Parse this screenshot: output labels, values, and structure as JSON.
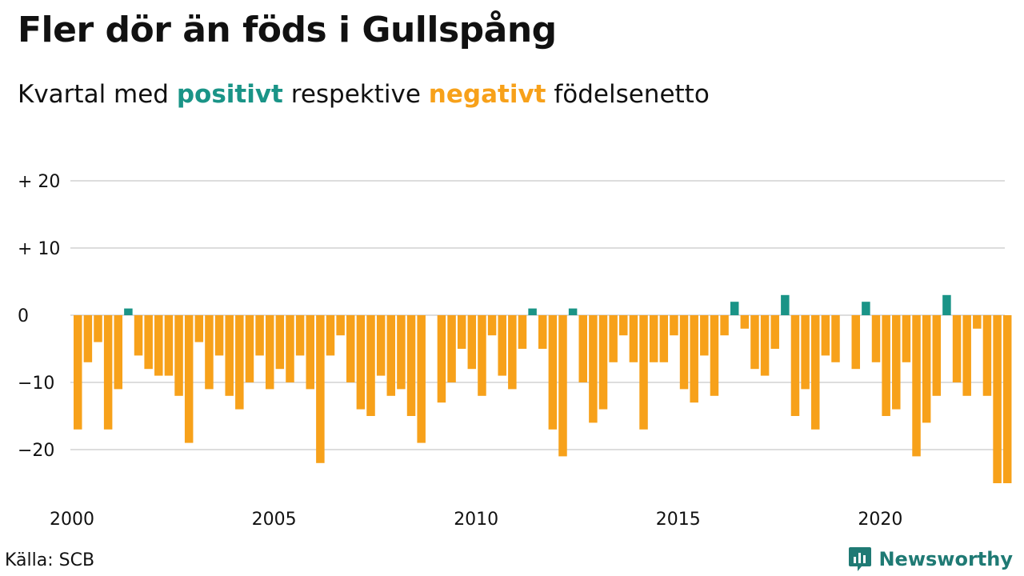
{
  "title": "Fler dör än föds i Gullspång",
  "subtitle": {
    "prefix": "Kvartal med",
    "positive": "positivt",
    "middle": "respektive",
    "negative": "negativt",
    "suffix": "födelsenetto"
  },
  "source": "Källa: SCB",
  "brand": {
    "name": "Newsworthy",
    "icon": "newsworthy-logo-icon"
  },
  "colors": {
    "positive": "#1a9487",
    "negative": "#f7a11a",
    "grid": "#dddddd",
    "text": "#111111"
  },
  "chart_data": {
    "type": "bar",
    "xlabel": "",
    "ylabel": "",
    "ylim": [
      -27,
      22
    ],
    "y_ticks": [
      {
        "value": 20,
        "label": "+ 20"
      },
      {
        "value": 10,
        "label": "+ 10"
      },
      {
        "value": 0,
        "label": "0"
      },
      {
        "value": -10,
        "label": "−10"
      },
      {
        "value": -20,
        "label": "−20"
      }
    ],
    "x_ticks": [
      "2000",
      "2005",
      "2010",
      "2015",
      "2020"
    ],
    "first_year": 2000,
    "grid": true,
    "categories": [
      "2000 Q1",
      "2000 Q2",
      "2000 Q3",
      "2000 Q4",
      "2001 Q1",
      "2001 Q2",
      "2001 Q3",
      "2001 Q4",
      "2002 Q1",
      "2002 Q2",
      "2002 Q3",
      "2002 Q4",
      "2003 Q1",
      "2003 Q2",
      "2003 Q3",
      "2003 Q4",
      "2004 Q1",
      "2004 Q2",
      "2004 Q3",
      "2004 Q4",
      "2005 Q1",
      "2005 Q2",
      "2005 Q3",
      "2005 Q4",
      "2006 Q1",
      "2006 Q2",
      "2006 Q3",
      "2006 Q4",
      "2007 Q1",
      "2007 Q2",
      "2007 Q3",
      "2007 Q4",
      "2008 Q1",
      "2008 Q2",
      "2008 Q3",
      "2008 Q4",
      "2009 Q1",
      "2009 Q2",
      "2009 Q3",
      "2009 Q4",
      "2010 Q1",
      "2010 Q2",
      "2010 Q3",
      "2010 Q4",
      "2011 Q1",
      "2011 Q2",
      "2011 Q3",
      "2011 Q4",
      "2012 Q1",
      "2012 Q2",
      "2012 Q3",
      "2012 Q4",
      "2013 Q1",
      "2013 Q2",
      "2013 Q3",
      "2013 Q4",
      "2014 Q1",
      "2014 Q2",
      "2014 Q3",
      "2014 Q4",
      "2015 Q1",
      "2015 Q2",
      "2015 Q3",
      "2015 Q4",
      "2016 Q1",
      "2016 Q2",
      "2016 Q3",
      "2016 Q4",
      "2017 Q1",
      "2017 Q2",
      "2017 Q3",
      "2017 Q4",
      "2018 Q1",
      "2018 Q2",
      "2018 Q3",
      "2018 Q4",
      "2019 Q1",
      "2019 Q2",
      "2019 Q3",
      "2019 Q4",
      "2020 Q1",
      "2020 Q2",
      "2020 Q3",
      "2020 Q4",
      "2021 Q1",
      "2021 Q2",
      "2021 Q3",
      "2021 Q4",
      "2022 Q1",
      "2022 Q2",
      "2022 Q3",
      "2022 Q4",
      "2023 Q1"
    ],
    "values": [
      -17,
      -7,
      -4,
      -17,
      -11,
      1,
      -6,
      -8,
      -9,
      -9,
      -12,
      -19,
      -4,
      -11,
      -6,
      -12,
      -14,
      -10,
      -6,
      -11,
      -8,
      -10,
      -6,
      -11,
      -22,
      -6,
      -3,
      -10,
      -14,
      -15,
      -9,
      -12,
      -11,
      -15,
      -19,
      0,
      -13,
      -10,
      -5,
      -8,
      -12,
      -3,
      -9,
      -11,
      -5,
      1,
      -5,
      -17,
      -21,
      1,
      -10,
      -16,
      -14,
      -7,
      -3,
      -7,
      -17,
      -7,
      -7,
      -3,
      -11,
      -13,
      -6,
      -12,
      -3,
      2,
      -2,
      -8,
      -9,
      -5,
      3,
      -15,
      -11,
      -17,
      -6,
      -7,
      0,
      -8,
      2,
      -7,
      -15,
      -14,
      -7,
      -21,
      -16,
      -12,
      3,
      -10,
      -12,
      -2,
      -12,
      -25,
      -25
    ]
  }
}
